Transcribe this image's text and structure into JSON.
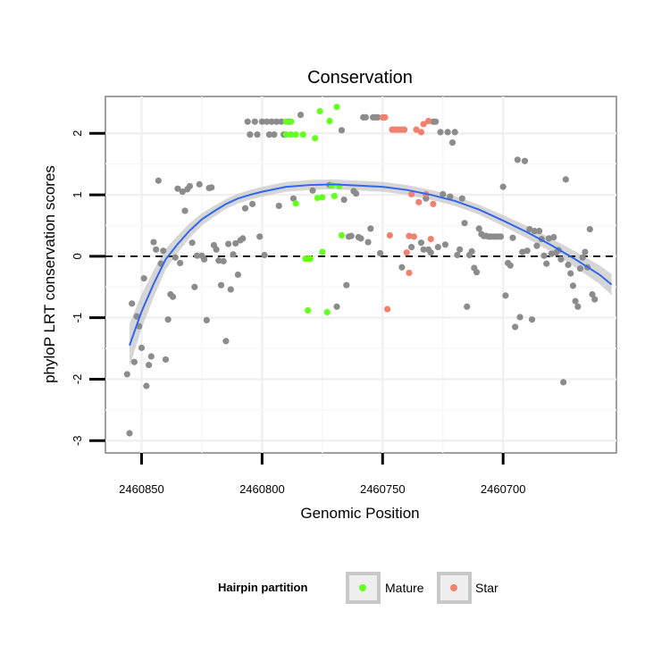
{
  "chart_data": {
    "type": "scatter",
    "title": "Conservation",
    "xlabel": "Genomic Position",
    "ylabel": "phyloP LRT conservation scores",
    "x_reversed": true,
    "xlim": [
      2460865,
      2460653
    ],
    "ylim": [
      -3.2,
      2.6
    ],
    "x_ticks": [
      2460850,
      2460800,
      2460750,
      2460700
    ],
    "x_tick_labels": [
      "2460850",
      "2460800",
      "2460750",
      "2460700"
    ],
    "y_ticks": [
      -3,
      -2,
      -1,
      0,
      1,
      2
    ],
    "y_tick_labels": [
      "-3",
      "-2",
      "-1",
      "0",
      "1",
      "2"
    ],
    "grid": true,
    "reference_line": {
      "y": 0,
      "style": "dashed",
      "color": "#000000"
    },
    "legend": {
      "title": "Hairpin partition",
      "placement": "bottom",
      "entries": [
        {
          "label": "Mature",
          "color": "#66ff22"
        },
        {
          "label": "Star",
          "color": "#f2806e"
        }
      ]
    },
    "colors": {
      "other": "#8c8c8c",
      "mature": "#66ff22",
      "star": "#f2806e",
      "smooth": "#3366ee",
      "band": "#c8c8c8"
    },
    "series": [
      {
        "group": "other",
        "points": [
          [
            2460855,
            -2.88
          ],
          [
            2460856,
            -1.92
          ],
          [
            2460854,
            -0.77
          ],
          [
            2460853,
            -1.72
          ],
          [
            2460852,
            -0.98
          ],
          [
            2460851,
            -1.14
          ],
          [
            2460850,
            -1.49
          ],
          [
            2460849,
            -0.36
          ],
          [
            2460848,
            -2.11
          ],
          [
            2460847,
            -1.77
          ],
          [
            2460846,
            -1.63
          ],
          [
            2460845,
            0.23
          ],
          [
            2460844,
            0.11
          ],
          [
            2460843,
            1.23
          ],
          [
            2460842,
            -0.12
          ],
          [
            2460841,
            0.09
          ],
          [
            2460840,
            -1.68
          ],
          [
            2460839,
            -1.03
          ],
          [
            2460838,
            -0.62
          ],
          [
            2460837,
            -0.66
          ],
          [
            2460836,
            -0.02
          ],
          [
            2460835,
            1.1
          ],
          [
            2460834,
            -0.11
          ],
          [
            2460833,
            1.05
          ],
          [
            2460832,
            0.74
          ],
          [
            2460831,
            1.09
          ],
          [
            2460830,
            1.14
          ],
          [
            2460829,
            0.22
          ],
          [
            2460828,
            -0.5
          ],
          [
            2460827,
            0.01
          ],
          [
            2460826,
            1.17
          ],
          [
            2460825,
            0.01
          ],
          [
            2460824,
            -0.05
          ],
          [
            2460823,
            -1.04
          ],
          [
            2460822,
            1.11
          ],
          [
            2460821,
            1.12
          ],
          [
            2460820,
            0.18
          ],
          [
            2460819,
            0.11
          ],
          [
            2460818,
            -0.07
          ],
          [
            2460817,
            -0.47
          ],
          [
            2460816,
            -0.08
          ],
          [
            2460815,
            -1.38
          ],
          [
            2460814,
            0.2
          ],
          [
            2460813,
            -0.54
          ],
          [
            2460812,
            0.03
          ],
          [
            2460811,
            0.21
          ],
          [
            2460810,
            -0.3
          ],
          [
            2460809,
            0.26
          ],
          [
            2460808,
            0.29
          ],
          [
            2460807,
            0.78
          ],
          [
            2460806,
            2.19
          ],
          [
            2460805,
            1.98
          ],
          [
            2460804,
            0.85
          ],
          [
            2460803,
            2.19
          ],
          [
            2460802,
            1.98
          ],
          [
            2460801,
            0.32
          ],
          [
            2460800,
            2.19
          ],
          [
            2460799,
            0.02
          ],
          [
            2460798,
            2.19
          ],
          [
            2460797,
            1.98
          ],
          [
            2460796,
            2.19
          ],
          [
            2460795,
            1.98
          ],
          [
            2460794,
            2.19
          ],
          [
            2460793,
            0.82
          ],
          [
            2460792,
            2.19
          ],
          [
            2460791,
            1.98
          ],
          [
            2460789,
            2.19
          ],
          [
            2460787,
            0.94
          ],
          [
            2460784,
            2.3
          ],
          [
            2460779,
            1.07
          ],
          [
            2460772,
            1.16
          ],
          [
            2460769,
            -0.82
          ],
          [
            2460767,
            2.05
          ],
          [
            2460766,
            0.92
          ],
          [
            2460765,
            -0.47
          ],
          [
            2460764,
            0.32
          ],
          [
            2460763,
            0.33
          ],
          [
            2460762,
            1.06
          ],
          [
            2460761,
            1.02
          ],
          [
            2460760,
            0.31
          ],
          [
            2460759,
            0.29
          ],
          [
            2460758,
            2.26
          ],
          [
            2460757,
            2.26
          ],
          [
            2460756,
            0.23
          ],
          [
            2460755,
            0.45
          ],
          [
            2460754,
            2.26
          ],
          [
            2460753,
            2.26
          ],
          [
            2460752,
            2.26
          ],
          [
            2460751,
            0.05
          ],
          [
            2460742,
            -0.18
          ],
          [
            2460738,
            0.15
          ],
          [
            2460734,
            0.22
          ],
          [
            2460733,
            0.11
          ],
          [
            2460732,
            0.94
          ],
          [
            2460731,
            0.11
          ],
          [
            2460730,
            0.06
          ],
          [
            2460729,
            2.19
          ],
          [
            2460728,
            2.19
          ],
          [
            2460727,
            0.15
          ],
          [
            2460726,
            2.02
          ],
          [
            2460725,
            1.01
          ],
          [
            2460724,
            0.19
          ],
          [
            2460723,
            2.02
          ],
          [
            2460722,
            0.97
          ],
          [
            2460721,
            1.85
          ],
          [
            2460720,
            2.02
          ],
          [
            2460719,
            0.02
          ],
          [
            2460718,
            0.11
          ],
          [
            2460717,
            0.94
          ],
          [
            2460716,
            0.54
          ],
          [
            2460715,
            -0.82
          ],
          [
            2460714,
            0.02
          ],
          [
            2460713,
            0.08
          ],
          [
            2460712,
            -0.19
          ],
          [
            2460711,
            -0.26
          ],
          [
            2460710,
            0.45
          ],
          [
            2460709,
            0.36
          ],
          [
            2460708,
            0.33
          ],
          [
            2460707,
            0.33
          ],
          [
            2460706,
            0.32
          ],
          [
            2460705,
            0.32
          ],
          [
            2460704,
            0.32
          ],
          [
            2460703,
            0.32
          ],
          [
            2460702,
            0.32
          ],
          [
            2460701,
            0.32
          ],
          [
            2460700,
            1.13
          ],
          [
            2460699,
            -0.64
          ],
          [
            2460698,
            -0.11
          ],
          [
            2460697,
            -0.15
          ],
          [
            2460696,
            0.3
          ],
          [
            2460695,
            -1.15
          ],
          [
            2460694,
            1.57
          ],
          [
            2460693,
            -0.99
          ],
          [
            2460692,
            0.07
          ],
          [
            2460691,
            1.55
          ],
          [
            2460690,
            0.09
          ],
          [
            2460689,
            0.44
          ],
          [
            2460688,
            -1.03
          ],
          [
            2460687,
            0.41
          ],
          [
            2460686,
            0.17
          ],
          [
            2460685,
            0.41
          ],
          [
            2460684,
            0.28
          ],
          [
            2460683,
            0.01
          ],
          [
            2460682,
            -0.12
          ],
          [
            2460681,
            0.29
          ],
          [
            2460680,
            0.04
          ],
          [
            2460679,
            0.31
          ],
          [
            2460678,
            0.06
          ],
          [
            2460677,
            0.1
          ],
          [
            2460676,
            -0.05
          ],
          [
            2460675,
            -2.05
          ],
          [
            2460674,
            1.25
          ],
          [
            2460673,
            -0.14
          ],
          [
            2460672,
            -0.28
          ],
          [
            2460671,
            -0.48
          ],
          [
            2460670,
            -0.73
          ],
          [
            2460669,
            -0.82
          ],
          [
            2460668,
            -0.2
          ],
          [
            2460667,
            -0.02
          ],
          [
            2460666,
            0.07
          ],
          [
            2460665,
            -0.18
          ],
          [
            2460664,
            0.44
          ],
          [
            2460663,
            -0.62
          ],
          [
            2460662,
            -0.7
          ]
        ]
      },
      {
        "group": "mature",
        "name": "Mature",
        "points": [
          [
            2460790,
            1.98
          ],
          [
            2460790,
            2.19
          ],
          [
            2460788,
            1.98
          ],
          [
            2460788,
            2.19
          ],
          [
            2460786,
            0.86
          ],
          [
            2460786,
            1.98
          ],
          [
            2460783,
            1.98
          ],
          [
            2460782,
            -0.04
          ],
          [
            2460781,
            -0.04
          ],
          [
            2460781,
            -0.88
          ],
          [
            2460780,
            -0.04
          ],
          [
            2460778,
            1.92
          ],
          [
            2460777,
            0.95
          ],
          [
            2460776,
            2.36
          ],
          [
            2460775,
            0.96
          ],
          [
            2460775,
            0.07
          ],
          [
            2460773,
            -0.91
          ],
          [
            2460772,
            2.2
          ],
          [
            2460771,
            1.15
          ],
          [
            2460770,
            0.98
          ],
          [
            2460769,
            2.43
          ],
          [
            2460768,
            1.14
          ],
          [
            2460767,
            0.34
          ]
        ]
      },
      {
        "group": "star",
        "name": "Star",
        "points": [
          [
            2460750,
            2.26
          ],
          [
            2460749,
            2.26
          ],
          [
            2460748,
            -0.86
          ],
          [
            2460747,
            0.34
          ],
          [
            2460746,
            2.06
          ],
          [
            2460745,
            2.06
          ],
          [
            2460744,
            2.06
          ],
          [
            2460743,
            2.06
          ],
          [
            2460742,
            2.06
          ],
          [
            2460741,
            2.06
          ],
          [
            2460740,
            0.06
          ],
          [
            2460739,
            -0.27
          ],
          [
            2460739,
            0.33
          ],
          [
            2460738,
            1.01
          ],
          [
            2460737,
            0.32
          ],
          [
            2460736,
            2.06
          ],
          [
            2460735,
            0.88
          ],
          [
            2460734,
            2.02
          ],
          [
            2460733,
            2.15
          ],
          [
            2460732,
            1.01
          ],
          [
            2460731,
            2.2
          ],
          [
            2460730,
            0.28
          ],
          [
            2460729,
            0.85
          ]
        ]
      }
    ],
    "smooth": {
      "color": "#3366ee",
      "points": [
        [
          2460855,
          -1.45
        ],
        [
          2460850,
          -0.9
        ],
        [
          2460845,
          -0.45
        ],
        [
          2460840,
          -0.05
        ],
        [
          2460835,
          0.2
        ],
        [
          2460830,
          0.42
        ],
        [
          2460825,
          0.6
        ],
        [
          2460820,
          0.73
        ],
        [
          2460815,
          0.85
        ],
        [
          2460810,
          0.94
        ],
        [
          2460805,
          1.0
        ],
        [
          2460800,
          1.05
        ],
        [
          2460790,
          1.13
        ],
        [
          2460780,
          1.16
        ],
        [
          2460770,
          1.17
        ],
        [
          2460760,
          1.15
        ],
        [
          2460750,
          1.13
        ],
        [
          2460740,
          1.08
        ],
        [
          2460730,
          1.0
        ],
        [
          2460720,
          0.9
        ],
        [
          2460710,
          0.76
        ],
        [
          2460700,
          0.58
        ],
        [
          2460690,
          0.39
        ],
        [
          2460680,
          0.18
        ],
        [
          2460670,
          -0.05
        ],
        [
          2460660,
          -0.3
        ],
        [
          2460655,
          -0.46
        ]
      ],
      "band_halfwidth": [
        0.35,
        0.28,
        0.22,
        0.17,
        0.14,
        0.12,
        0.1,
        0.09,
        0.08,
        0.08,
        0.08,
        0.08,
        0.08,
        0.08,
        0.08,
        0.08,
        0.08,
        0.08,
        0.08,
        0.08,
        0.08,
        0.09,
        0.1,
        0.11,
        0.13,
        0.15,
        0.17
      ]
    }
  }
}
